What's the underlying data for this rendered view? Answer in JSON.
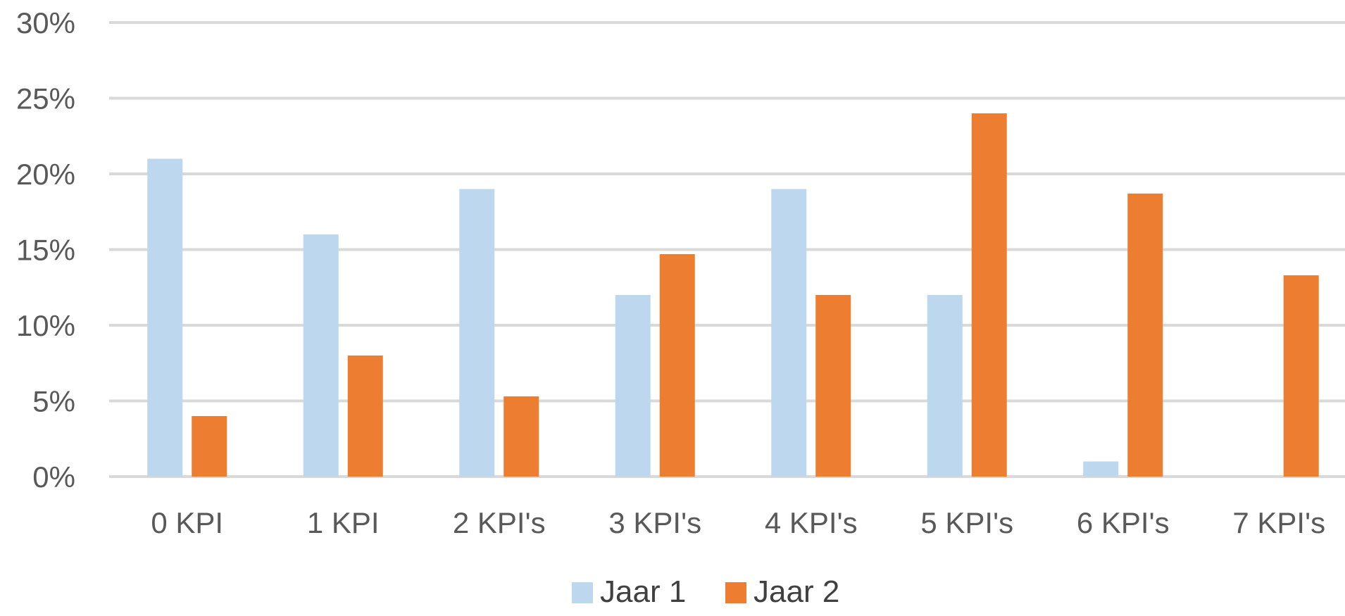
{
  "chart_data": {
    "type": "bar",
    "title": "",
    "xlabel": "",
    "ylabel": "",
    "categories": [
      "0 KPI",
      "1 KPI",
      "2 KPI's",
      "3 KPI's",
      "4 KPI's",
      "5 KPI's",
      "6 KPI's",
      "7 KPI's"
    ],
    "series": [
      {
        "name": "Jaar 1",
        "color": "#bdd7ee",
        "values": [
          21,
          16,
          19,
          12,
          19,
          12,
          1,
          0
        ]
      },
      {
        "name": "Jaar 2",
        "color": "#ed7d31",
        "values": [
          4,
          8,
          5.3,
          14.7,
          12,
          24,
          18.7,
          13.3
        ]
      }
    ],
    "ylim": [
      0,
      30
    ],
    "yticks": [
      0,
      5,
      10,
      15,
      20,
      25,
      30
    ],
    "ytick_labels": [
      "0%",
      "5%",
      "10%",
      "15%",
      "20%",
      "25%",
      "30%"
    ],
    "y_unit": "%",
    "grid": true,
    "gridline_color": "#d9d9d9",
    "legend_position": "bottom"
  }
}
